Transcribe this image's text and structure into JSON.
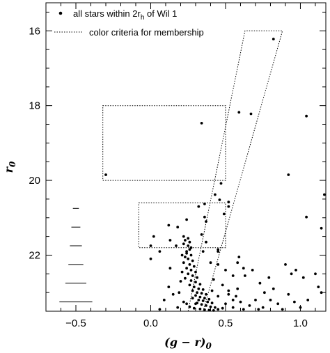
{
  "chart_data": {
    "type": "scatter",
    "title": "",
    "xlabel": "(g − r)",
    "xlabel_sub": "0",
    "ylabel": "r",
    "ylabel_sub": "0",
    "xlim": [
      -0.7,
      1.17
    ],
    "ylim": [
      23.5,
      15.25
    ],
    "y_inverted": true,
    "x_ticks": [
      -0.5,
      0.0,
      0.5,
      1.0
    ],
    "x_tick_labels": [
      "−0.5",
      "0.0",
      "0.5",
      "1.0"
    ],
    "y_ticks": [
      16,
      18,
      20,
      22
    ],
    "y_tick_labels": [
      "16",
      "18",
      "20",
      "22"
    ],
    "x_minor_step": 0.1,
    "y_minor_step": 0.5,
    "grid": false,
    "legend_placement": "top-left",
    "legend": {
      "stars_label_prefix": "all stars within 2r",
      "stars_label_sub": "h",
      "stars_label_suffix": " of Wil 1",
      "criteria_label": "color criteria for membership"
    },
    "membership_regions": [
      {
        "kind": "box",
        "x": [
          -0.32,
          0.5
        ],
        "y": [
          18.0,
          20.0
        ]
      },
      {
        "kind": "box",
        "x": [
          -0.08,
          0.5
        ],
        "y": [
          20.6,
          21.8
        ]
      },
      {
        "kind": "parallelogram",
        "bottom_y": 23.5,
        "top_y": 16.0,
        "bottom_x": [
          0.25,
          0.35
        ],
        "top_x": [
          0.63,
          0.88
        ]
      }
    ],
    "error_bars": [
      {
        "x": -0.5,
        "y": 20.75,
        "xerr": 0.01
      },
      {
        "x": -0.5,
        "y": 21.25,
        "xerr": 0.015
      },
      {
        "x": -0.5,
        "y": 21.75,
        "xerr": 0.02
      },
      {
        "x": -0.5,
        "y": 22.25,
        "xerr": 0.025
      },
      {
        "x": -0.5,
        "y": 22.75,
        "xerr": 0.035
      },
      {
        "x": -0.5,
        "y": 23.25,
        "xerr": 0.055
      }
    ],
    "series": [
      {
        "points": [
          [
            0.82,
            16.22
          ],
          [
            0.34,
            18.47
          ],
          [
            0.59,
            18.18
          ],
          [
            0.67,
            18.22
          ],
          [
            1.04,
            18.28
          ],
          [
            -0.3,
            19.85
          ],
          [
            0.47,
            20.08
          ],
          [
            0.92,
            19.85
          ],
          [
            1.16,
            20.38
          ],
          [
            0.43,
            20.38
          ],
          [
            0.46,
            20.52
          ],
          [
            0.52,
            20.58
          ],
          [
            0.52,
            20.7
          ],
          [
            0.36,
            20.63
          ],
          [
            0.32,
            20.7
          ],
          [
            1.04,
            20.98
          ],
          [
            0.49,
            20.9
          ],
          [
            0.36,
            20.98
          ],
          [
            0.24,
            21.05
          ],
          [
            0.37,
            21.1
          ],
          [
            1.14,
            21.28
          ],
          [
            0.12,
            21.2
          ],
          [
            0.18,
            21.25
          ],
          [
            0.34,
            21.45
          ],
          [
            0.02,
            21.5
          ],
          [
            0.13,
            21.6
          ],
          [
            0.0,
            21.75
          ],
          [
            0.37,
            21.65
          ],
          [
            0.35,
            21.9
          ],
          [
            0.45,
            21.9
          ],
          [
            0.06,
            21.9
          ],
          [
            0.17,
            21.75
          ],
          [
            0.24,
            21.9
          ],
          [
            0.26,
            21.85
          ],
          [
            0.22,
            21.5
          ],
          [
            0.25,
            21.55
          ],
          [
            0.23,
            21.6
          ],
          [
            0.26,
            21.65
          ],
          [
            0.22,
            21.7
          ],
          [
            0.25,
            21.75
          ],
          [
            0.27,
            21.8
          ],
          [
            0.24,
            21.95
          ],
          [
            0.21,
            22.0
          ],
          [
            0.27,
            22.0
          ],
          [
            0.23,
            22.05
          ],
          [
            0.25,
            22.1
          ],
          [
            0.28,
            22.15
          ],
          [
            0.22,
            22.2
          ],
          [
            0.26,
            22.25
          ],
          [
            0.29,
            22.3
          ],
          [
            0.24,
            22.35
          ],
          [
            0.27,
            22.4
          ],
          [
            0.21,
            22.45
          ],
          [
            0.3,
            22.45
          ],
          [
            0.25,
            22.5
          ],
          [
            0.28,
            22.55
          ],
          [
            0.31,
            22.6
          ],
          [
            0.23,
            22.62
          ],
          [
            0.27,
            22.68
          ],
          [
            0.3,
            22.72
          ],
          [
            0.33,
            22.78
          ],
          [
            0.26,
            22.8
          ],
          [
            0.29,
            22.85
          ],
          [
            0.32,
            22.9
          ],
          [
            0.35,
            22.92
          ],
          [
            0.28,
            22.95
          ],
          [
            0.31,
            23.0
          ],
          [
            0.34,
            23.02
          ],
          [
            0.37,
            23.05
          ],
          [
            0.3,
            23.08
          ],
          [
            0.33,
            23.12
          ],
          [
            0.36,
            23.15
          ],
          [
            0.39,
            23.18
          ],
          [
            0.32,
            23.2
          ],
          [
            0.35,
            23.22
          ],
          [
            0.38,
            23.25
          ],
          [
            0.41,
            23.28
          ],
          [
            0.3,
            23.3
          ],
          [
            0.34,
            23.32
          ],
          [
            0.37,
            23.35
          ],
          [
            0.4,
            23.38
          ],
          [
            0.43,
            23.4
          ],
          [
            0.29,
            23.42
          ],
          [
            0.33,
            23.44
          ],
          [
            0.36,
            23.46
          ],
          [
            0.39,
            23.47
          ],
          [
            0.42,
            23.48
          ],
          [
            0.45,
            23.45
          ],
          [
            0.48,
            23.42
          ],
          [
            0.26,
            23.38
          ],
          [
            0.24,
            23.3
          ],
          [
            0.22,
            23.25
          ],
          [
            0.28,
            23.15
          ],
          [
            0.31,
            23.28
          ],
          [
            0.0,
            22.1
          ],
          [
            0.13,
            22.35
          ],
          [
            0.2,
            22.7
          ],
          [
            0.15,
            23.05
          ],
          [
            0.09,
            23.2
          ],
          [
            0.18,
            23.4
          ],
          [
            0.06,
            23.45
          ],
          [
            0.19,
            23.0
          ],
          [
            0.12,
            22.85
          ],
          [
            0.4,
            22.2
          ],
          [
            0.45,
            22.25
          ],
          [
            0.5,
            22.4
          ],
          [
            0.55,
            22.55
          ],
          [
            0.42,
            22.65
          ],
          [
            0.48,
            22.8
          ],
          [
            0.52,
            22.95
          ],
          [
            0.57,
            23.1
          ],
          [
            0.6,
            23.25
          ],
          [
            0.5,
            23.3
          ],
          [
            0.55,
            23.4
          ],
          [
            0.62,
            23.45
          ],
          [
            0.66,
            23.35
          ],
          [
            0.7,
            23.2
          ],
          [
            0.45,
            23.1
          ],
          [
            0.62,
            22.35
          ],
          [
            0.59,
            22.05
          ],
          [
            0.68,
            22.4
          ],
          [
            0.73,
            22.75
          ],
          [
            0.76,
            23.0
          ],
          [
            0.8,
            23.2
          ],
          [
            0.82,
            22.9
          ],
          [
            0.85,
            23.3
          ],
          [
            0.92,
            23.05
          ],
          [
            0.96,
            23.25
          ],
          [
            0.75,
            23.4
          ],
          [
            0.88,
            23.45
          ],
          [
            1.02,
            22.6
          ],
          [
            0.97,
            22.4
          ],
          [
            0.9,
            22.25
          ],
          [
            1.1,
            22.5
          ],
          [
            1.14,
            23.0
          ],
          [
            1.12,
            22.85
          ],
          [
            1.0,
            23.4
          ],
          [
            1.05,
            23.2
          ],
          [
            0.94,
            22.5
          ],
          [
            0.79,
            22.6
          ],
          [
            0.58,
            22.2
          ],
          [
            0.45,
            21.85
          ],
          [
            0.63,
            22.55
          ],
          [
            0.72,
            23.45
          ],
          [
            0.55,
            23.2
          ],
          [
            0.52,
            23.05
          ],
          [
            0.58,
            22.9
          ],
          [
            0.41,
            22.95
          ]
        ]
      }
    ]
  }
}
